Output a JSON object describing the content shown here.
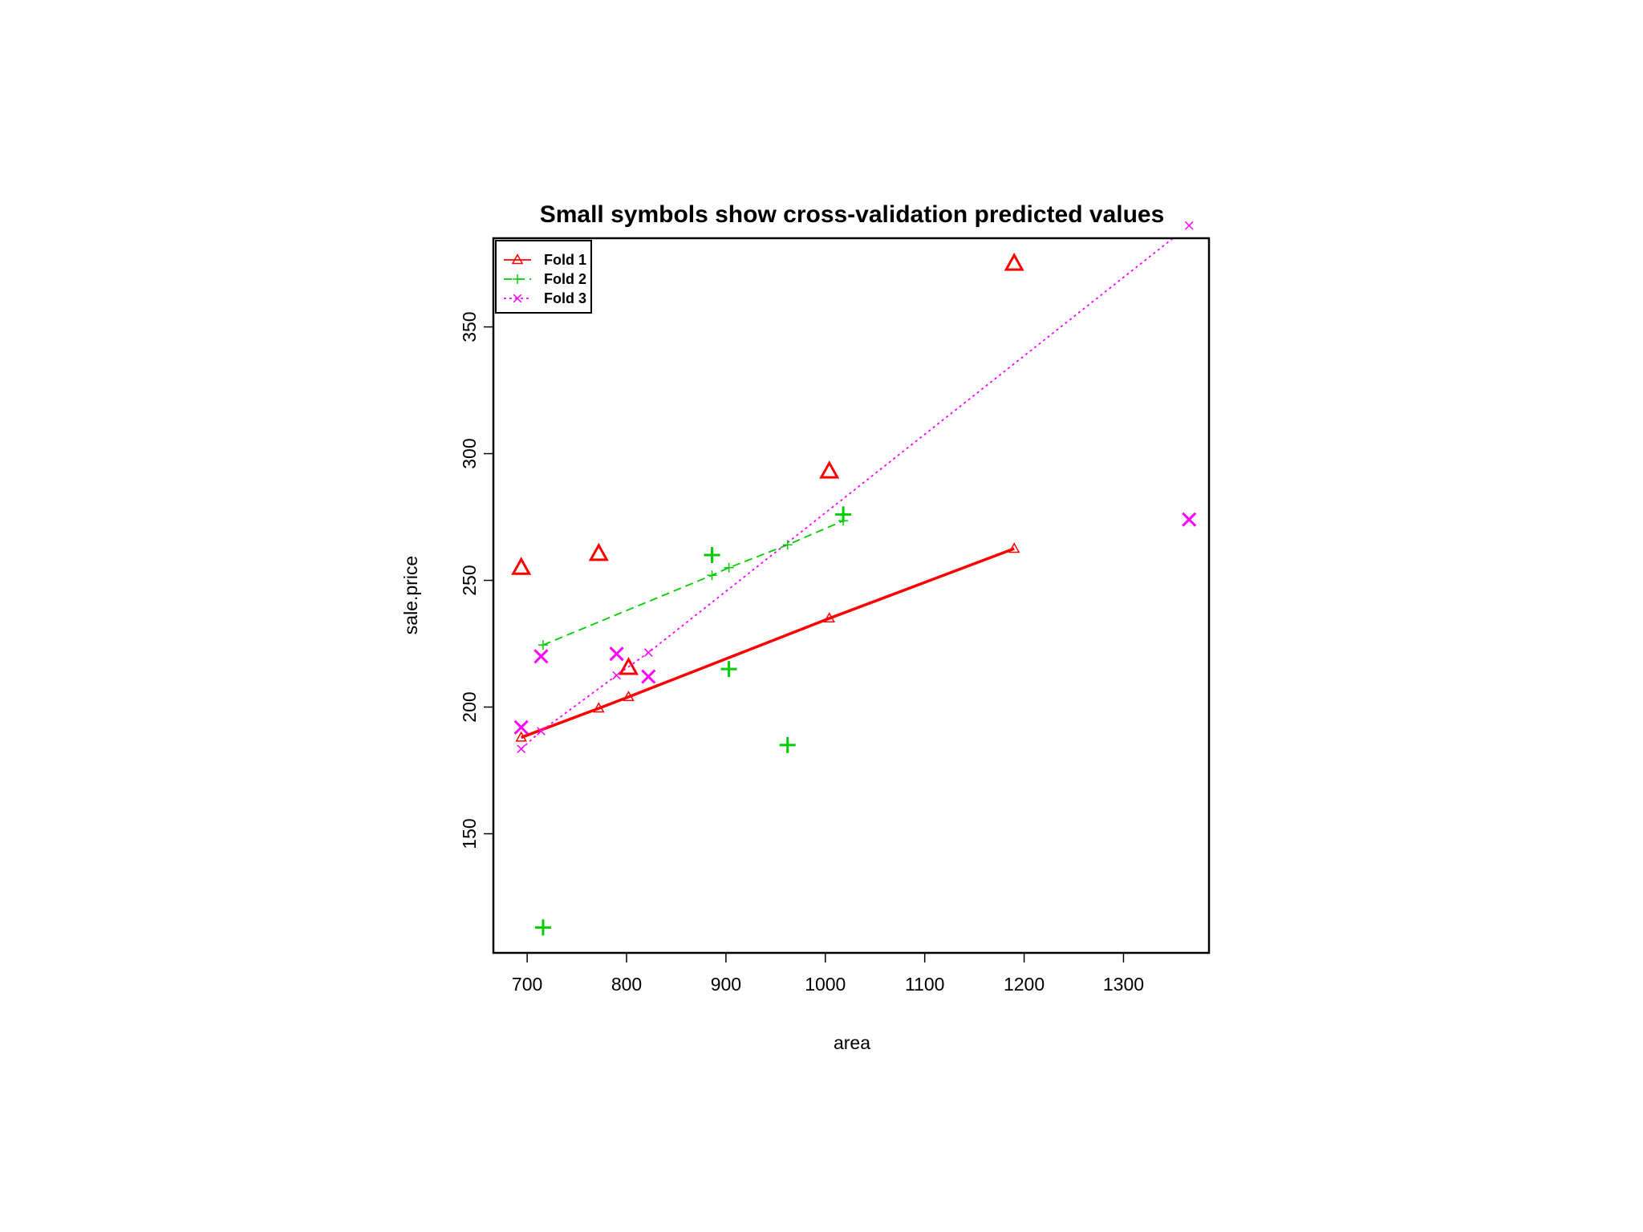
{
  "chart_data": {
    "type": "scatter",
    "title": "Small symbols show cross-validation predicted values",
    "xlabel": "area",
    "ylabel": "sale.price",
    "xlim": [
      666,
      1386
    ],
    "ylim": [
      103,
      385
    ],
    "xticks": [
      700,
      800,
      900,
      1000,
      1100,
      1200,
      1300
    ],
    "yticks": [
      150,
      200,
      250,
      300,
      350
    ],
    "grid": false,
    "legend": "top-left",
    "series": [
      {
        "name": "Fold 1",
        "color": "#ff0000",
        "marker": "triangle",
        "line_style": "solid",
        "observed": {
          "x": [
            694,
            772,
            802,
            1004,
            1190
          ],
          "y": [
            255,
            260.5,
            215.5,
            293,
            375
          ]
        },
        "predicted": {
          "x": [
            694,
            772,
            802,
            1004,
            1190
          ],
          "y": [
            188,
            199.5,
            204,
            235,
            262.5
          ]
        }
      },
      {
        "name": "Fold 2",
        "color": "#00cd00",
        "marker": "plus",
        "line_style": "dashed",
        "observed": {
          "x": [
            716,
            886,
            903,
            962,
            1018
          ],
          "y": [
            113,
            260,
            215,
            185,
            276
          ]
        },
        "predicted": {
          "x": [
            716,
            886,
            903,
            962,
            1018
          ],
          "y": [
            224.5,
            252,
            255,
            264,
            273.5
          ]
        }
      },
      {
        "name": "Fold 3",
        "color": "#ff00ff",
        "marker": "cross",
        "line_style": "dotted",
        "observed": {
          "x": [
            694,
            714,
            790,
            822,
            1366
          ],
          "y": [
            192,
            220,
            221,
            212,
            274
          ]
        },
        "predicted": {
          "x": [
            694,
            714,
            790,
            822,
            1366
          ],
          "y": [
            183.5,
            190.5,
            212.5,
            221.5,
            390
          ]
        }
      }
    ]
  }
}
